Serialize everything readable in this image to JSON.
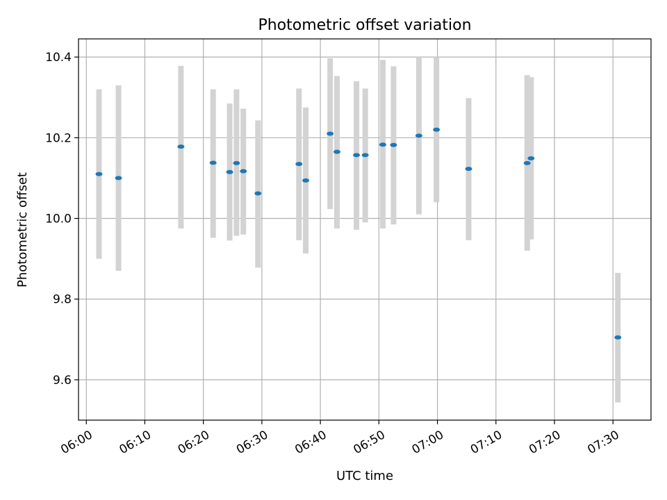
{
  "chart_data": {
    "type": "scatter",
    "title": "Photometric offset variation",
    "xlabel": "UTC time",
    "ylabel": "Photometric offset",
    "x_ticks": [
      "06:00",
      "06:10",
      "06:20",
      "06:30",
      "06:40",
      "06:50",
      "07:00",
      "07:10",
      "07:20",
      "07:30"
    ],
    "y_ticks": [
      "9.6",
      "9.8",
      "10.0",
      "10.2",
      "10.4"
    ],
    "xlim": [
      "05:58:40",
      "07:36:30"
    ],
    "ylim": [
      9.5,
      10.445
    ],
    "grid": true,
    "marker_color": "#1f77b4",
    "errorbar_color": "#d3d3d3",
    "series": [
      {
        "points": [
          {
            "x": "06:02:10",
            "y": 10.11,
            "yerr_low": 9.9,
            "yerr_high": 10.32
          },
          {
            "x": "06:05:30",
            "y": 10.1,
            "yerr_low": 9.87,
            "yerr_high": 10.33
          },
          {
            "x": "06:16:10",
            "y": 10.178,
            "yerr_low": 9.975,
            "yerr_high": 10.378
          },
          {
            "x": "06:21:40",
            "y": 10.138,
            "yerr_low": 9.952,
            "yerr_high": 10.32
          },
          {
            "x": "06:24:30",
            "y": 10.115,
            "yerr_low": 9.945,
            "yerr_high": 10.285
          },
          {
            "x": "06:25:40",
            "y": 10.137,
            "yerr_low": 9.957,
            "yerr_high": 10.32
          },
          {
            "x": "06:26:50",
            "y": 10.117,
            "yerr_low": 9.96,
            "yerr_high": 10.272
          },
          {
            "x": "06:29:20",
            "y": 10.062,
            "yerr_low": 9.878,
            "yerr_high": 10.243
          },
          {
            "x": "06:36:20",
            "y": 10.135,
            "yerr_low": 9.946,
            "yerr_high": 10.322
          },
          {
            "x": "06:37:30",
            "y": 10.094,
            "yerr_low": 9.913,
            "yerr_high": 10.275
          },
          {
            "x": "06:41:40",
            "y": 10.21,
            "yerr_low": 10.023,
            "yerr_high": 10.397
          },
          {
            "x": "06:42:50",
            "y": 10.165,
            "yerr_low": 9.975,
            "yerr_high": 10.353
          },
          {
            "x": "06:46:10",
            "y": 10.157,
            "yerr_low": 9.972,
            "yerr_high": 10.34
          },
          {
            "x": "06:47:40",
            "y": 10.157,
            "yerr_low": 9.99,
            "yerr_high": 10.322
          },
          {
            "x": "06:50:40",
            "y": 10.183,
            "yerr_low": 9.975,
            "yerr_high": 10.393
          },
          {
            "x": "06:52:30",
            "y": 10.182,
            "yerr_low": 9.985,
            "yerr_high": 10.377
          },
          {
            "x": "06:56:50",
            "y": 10.205,
            "yerr_low": 10.01,
            "yerr_high": 10.4
          },
          {
            "x": "06:59:50",
            "y": 10.22,
            "yerr_low": 10.04,
            "yerr_high": 10.4
          },
          {
            "x": "07:05:20",
            "y": 10.123,
            "yerr_low": 9.946,
            "yerr_high": 10.298
          },
          {
            "x": "07:15:20",
            "y": 10.137,
            "yerr_low": 9.92,
            "yerr_high": 10.355
          },
          {
            "x": "07:16:00",
            "y": 10.149,
            "yerr_low": 9.948,
            "yerr_high": 10.35
          },
          {
            "x": "07:30:50",
            "y": 9.705,
            "yerr_low": 9.544,
            "yerr_high": 9.865
          }
        ]
      }
    ]
  }
}
